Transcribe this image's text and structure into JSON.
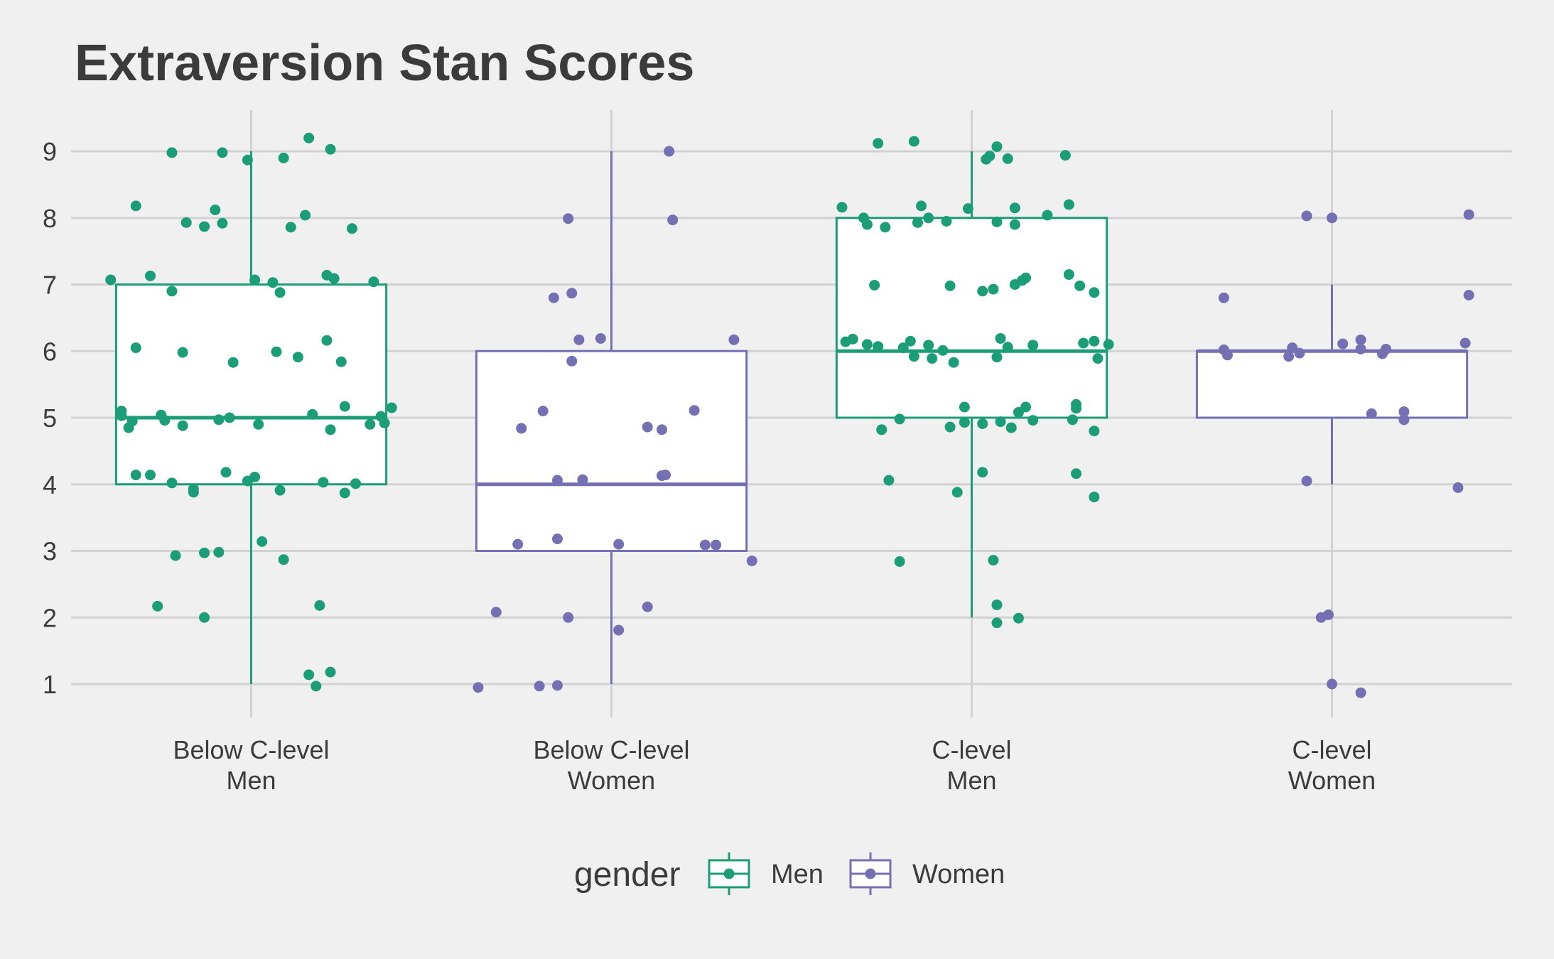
{
  "chart_data": {
    "type": "box",
    "title": "Extraversion Stan Scores",
    "xlabel": "",
    "ylabel": "",
    "ylim": [
      0.5,
      9.6
    ],
    "yticks": [
      1,
      2,
      3,
      4,
      5,
      6,
      7,
      8,
      9
    ],
    "grid": true,
    "legend_position": "bottom",
    "colors": {
      "Men": "#1b9e77",
      "Women": "#7570b3"
    },
    "legend": {
      "title": "gender",
      "items": [
        "Men",
        "Women"
      ]
    },
    "categories": [
      {
        "label": [
          "Below C-level",
          "Men"
        ],
        "gender": "Men",
        "box": {
          "min": 1,
          "q1": 4,
          "median": 5,
          "q3": 7,
          "max": 9
        },
        "points": [
          [
            -0.39,
            7.07
          ],
          [
            -0.32,
            8.18
          ],
          [
            -0.22,
            8.98
          ],
          [
            -0.08,
            8.98
          ],
          [
            -0.01,
            8.87
          ],
          [
            0.09,
            8.9
          ],
          [
            0.16,
            9.2
          ],
          [
            0.22,
            9.03
          ],
          [
            -0.18,
            7.93
          ],
          [
            -0.13,
            7.87
          ],
          [
            -0.1,
            8.12
          ],
          [
            -0.08,
            7.92
          ],
          [
            0.11,
            7.86
          ],
          [
            0.15,
            8.04
          ],
          [
            0.28,
            7.84
          ],
          [
            -0.28,
            7.13
          ],
          [
            -0.22,
            6.9
          ],
          [
            0.01,
            7.07
          ],
          [
            0.06,
            7.03
          ],
          [
            0.08,
            6.88
          ],
          [
            0.21,
            7.14
          ],
          [
            0.23,
            7.09
          ],
          [
            0.34,
            7.04
          ],
          [
            -0.32,
            6.05
          ],
          [
            -0.19,
            5.98
          ],
          [
            -0.05,
            5.83
          ],
          [
            0.07,
            5.99
          ],
          [
            0.13,
            5.91
          ],
          [
            0.21,
            6.16
          ],
          [
            0.25,
            5.84
          ],
          [
            -0.36,
            5.1
          ],
          [
            -0.36,
            5.03
          ],
          [
            -0.34,
            4.85
          ],
          [
            -0.33,
            4.95
          ],
          [
            -0.25,
            5.04
          ],
          [
            -0.24,
            4.96
          ],
          [
            -0.19,
            4.88
          ],
          [
            -0.09,
            4.97
          ],
          [
            -0.06,
            5.0
          ],
          [
            0.02,
            4.9
          ],
          [
            0.17,
            5.05
          ],
          [
            0.22,
            4.82
          ],
          [
            0.26,
            5.17
          ],
          [
            0.33,
            4.9
          ],
          [
            0.36,
            5.02
          ],
          [
            0.37,
            4.92
          ],
          [
            0.39,
            5.15
          ],
          [
            -0.32,
            4.14
          ],
          [
            -0.28,
            4.14
          ],
          [
            -0.22,
            4.02
          ],
          [
            -0.16,
            3.88
          ],
          [
            -0.16,
            3.93
          ],
          [
            -0.07,
            4.18
          ],
          [
            -0.01,
            4.05
          ],
          [
            0.01,
            4.11
          ],
          [
            0.08,
            3.91
          ],
          [
            0.2,
            4.03
          ],
          [
            0.26,
            3.87
          ],
          [
            0.29,
            4.01
          ],
          [
            -0.21,
            2.93
          ],
          [
            -0.13,
            2.97
          ],
          [
            -0.09,
            2.98
          ],
          [
            0.03,
            3.14
          ],
          [
            0.09,
            2.87
          ],
          [
            -0.26,
            2.17
          ],
          [
            -0.13,
            2.0
          ],
          [
            0.19,
            2.18
          ],
          [
            0.16,
            1.14
          ],
          [
            0.18,
            0.97
          ],
          [
            0.22,
            1.18
          ]
        ]
      },
      {
        "label": [
          "Below C-level",
          "Women"
        ],
        "gender": "Women",
        "box": {
          "min": 1,
          "q1": 3,
          "median": 4,
          "q3": 6,
          "max": 9
        },
        "points": [
          [
            0.16,
            9.0
          ],
          [
            -0.12,
            7.99
          ],
          [
            0.17,
            7.97
          ],
          [
            -0.16,
            6.8
          ],
          [
            -0.11,
            6.87
          ],
          [
            -0.09,
            6.17
          ],
          [
            -0.03,
            6.19
          ],
          [
            0.34,
            6.17
          ],
          [
            -0.11,
            5.85
          ],
          [
            -0.19,
            5.1
          ],
          [
            -0.25,
            4.84
          ],
          [
            0.1,
            4.86
          ],
          [
            0.14,
            4.82
          ],
          [
            0.23,
            5.11
          ],
          [
            -0.15,
            4.06
          ],
          [
            -0.08,
            4.07
          ],
          [
            0.14,
            4.13
          ],
          [
            0.15,
            4.14
          ],
          [
            -0.26,
            3.1
          ],
          [
            -0.15,
            3.18
          ],
          [
            0.02,
            3.1
          ],
          [
            0.26,
            3.09
          ],
          [
            0.29,
            3.09
          ],
          [
            0.39,
            2.85
          ],
          [
            -0.32,
            2.08
          ],
          [
            -0.12,
            2.0
          ],
          [
            0.02,
            1.81
          ],
          [
            0.1,
            2.16
          ],
          [
            -0.37,
            0.95
          ],
          [
            -0.2,
            0.97
          ],
          [
            -0.15,
            0.98
          ]
        ]
      },
      {
        "label": [
          "C-level",
          "Men"
        ],
        "gender": "Men",
        "box": {
          "min": 2,
          "q1": 5,
          "median": 6,
          "q3": 8,
          "max": 9
        },
        "points": [
          [
            -0.26,
            9.12
          ],
          [
            -0.16,
            9.15
          ],
          [
            0.07,
            9.07
          ],
          [
            0.04,
            8.88
          ],
          [
            0.05,
            8.93
          ],
          [
            0.1,
            8.89
          ],
          [
            0.26,
            8.94
          ],
          [
            -0.36,
            8.16
          ],
          [
            -0.3,
            8.0
          ],
          [
            -0.29,
            7.9
          ],
          [
            -0.24,
            7.86
          ],
          [
            -0.15,
            7.93
          ],
          [
            -0.14,
            8.18
          ],
          [
            -0.12,
            8.0
          ],
          [
            -0.07,
            7.95
          ],
          [
            -0.01,
            8.14
          ],
          [
            0.07,
            7.94
          ],
          [
            0.12,
            8.15
          ],
          [
            0.21,
            8.04
          ],
          [
            0.27,
            8.2
          ],
          [
            0.12,
            7.9
          ],
          [
            -0.27,
            6.99
          ],
          [
            -0.06,
            6.98
          ],
          [
            0.03,
            6.9
          ],
          [
            0.06,
            6.93
          ],
          [
            0.12,
            7.0
          ],
          [
            0.14,
            7.06
          ],
          [
            0.15,
            7.1
          ],
          [
            0.27,
            7.15
          ],
          [
            0.3,
            6.98
          ],
          [
            0.34,
            6.88
          ],
          [
            -0.35,
            6.14
          ],
          [
            -0.33,
            6.18
          ],
          [
            -0.29,
            6.1
          ],
          [
            -0.26,
            6.07
          ],
          [
            -0.19,
            6.05
          ],
          [
            -0.17,
            6.15
          ],
          [
            -0.16,
            5.92
          ],
          [
            -0.12,
            6.09
          ],
          [
            -0.11,
            5.89
          ],
          [
            -0.08,
            6.01
          ],
          [
            -0.05,
            5.83
          ],
          [
            0.07,
            5.91
          ],
          [
            0.08,
            6.19
          ],
          [
            0.1,
            6.06
          ],
          [
            0.17,
            6.09
          ],
          [
            0.31,
            6.12
          ],
          [
            0.34,
            6.15
          ],
          [
            0.35,
            5.89
          ],
          [
            0.38,
            6.1
          ],
          [
            -0.2,
            4.98
          ],
          [
            -0.25,
            4.82
          ],
          [
            -0.06,
            4.86
          ],
          [
            -0.02,
            5.16
          ],
          [
            -0.02,
            4.93
          ],
          [
            0.03,
            4.91
          ],
          [
            0.08,
            4.94
          ],
          [
            0.11,
            4.85
          ],
          [
            0.13,
            5.08
          ],
          [
            0.15,
            5.16
          ],
          [
            0.17,
            4.96
          ],
          [
            0.28,
            4.97
          ],
          [
            0.29,
            5.14
          ],
          [
            0.29,
            5.2
          ],
          [
            0.34,
            4.8
          ],
          [
            -0.23,
            4.06
          ],
          [
            0.03,
            4.18
          ],
          [
            -0.04,
            3.88
          ],
          [
            0.34,
            3.81
          ],
          [
            0.29,
            4.16
          ],
          [
            -0.2,
            2.84
          ],
          [
            0.06,
            2.86
          ],
          [
            0.07,
            2.19
          ],
          [
            0.07,
            1.92
          ],
          [
            0.13,
            1.99
          ]
        ]
      },
      {
        "label": [
          "C-level",
          "Women"
        ],
        "gender": "Women",
        "box": {
          "min": 4,
          "q1": 5,
          "median": 6,
          "q3": 6,
          "max": 7
        },
        "points": [
          [
            -0.07,
            8.03
          ],
          [
            0.0,
            8.0
          ],
          [
            0.38,
            8.05
          ],
          [
            -0.3,
            6.8
          ],
          [
            0.38,
            6.84
          ],
          [
            -0.3,
            6.02
          ],
          [
            -0.29,
            5.94
          ],
          [
            -0.12,
            5.92
          ],
          [
            -0.11,
            6.05
          ],
          [
            -0.09,
            5.97
          ],
          [
            0.03,
            6.11
          ],
          [
            0.08,
            6.17
          ],
          [
            0.08,
            6.03
          ],
          [
            0.14,
            5.96
          ],
          [
            0.15,
            6.03
          ],
          [
            0.37,
            6.12
          ],
          [
            0.11,
            5.06
          ],
          [
            0.2,
            5.09
          ],
          [
            0.2,
            4.97
          ],
          [
            -0.07,
            4.05
          ],
          [
            0.35,
            3.95
          ],
          [
            -0.03,
            2.0
          ],
          [
            -0.01,
            2.04
          ],
          [
            0.0,
            1.0
          ],
          [
            0.08,
            0.87
          ]
        ]
      }
    ]
  }
}
